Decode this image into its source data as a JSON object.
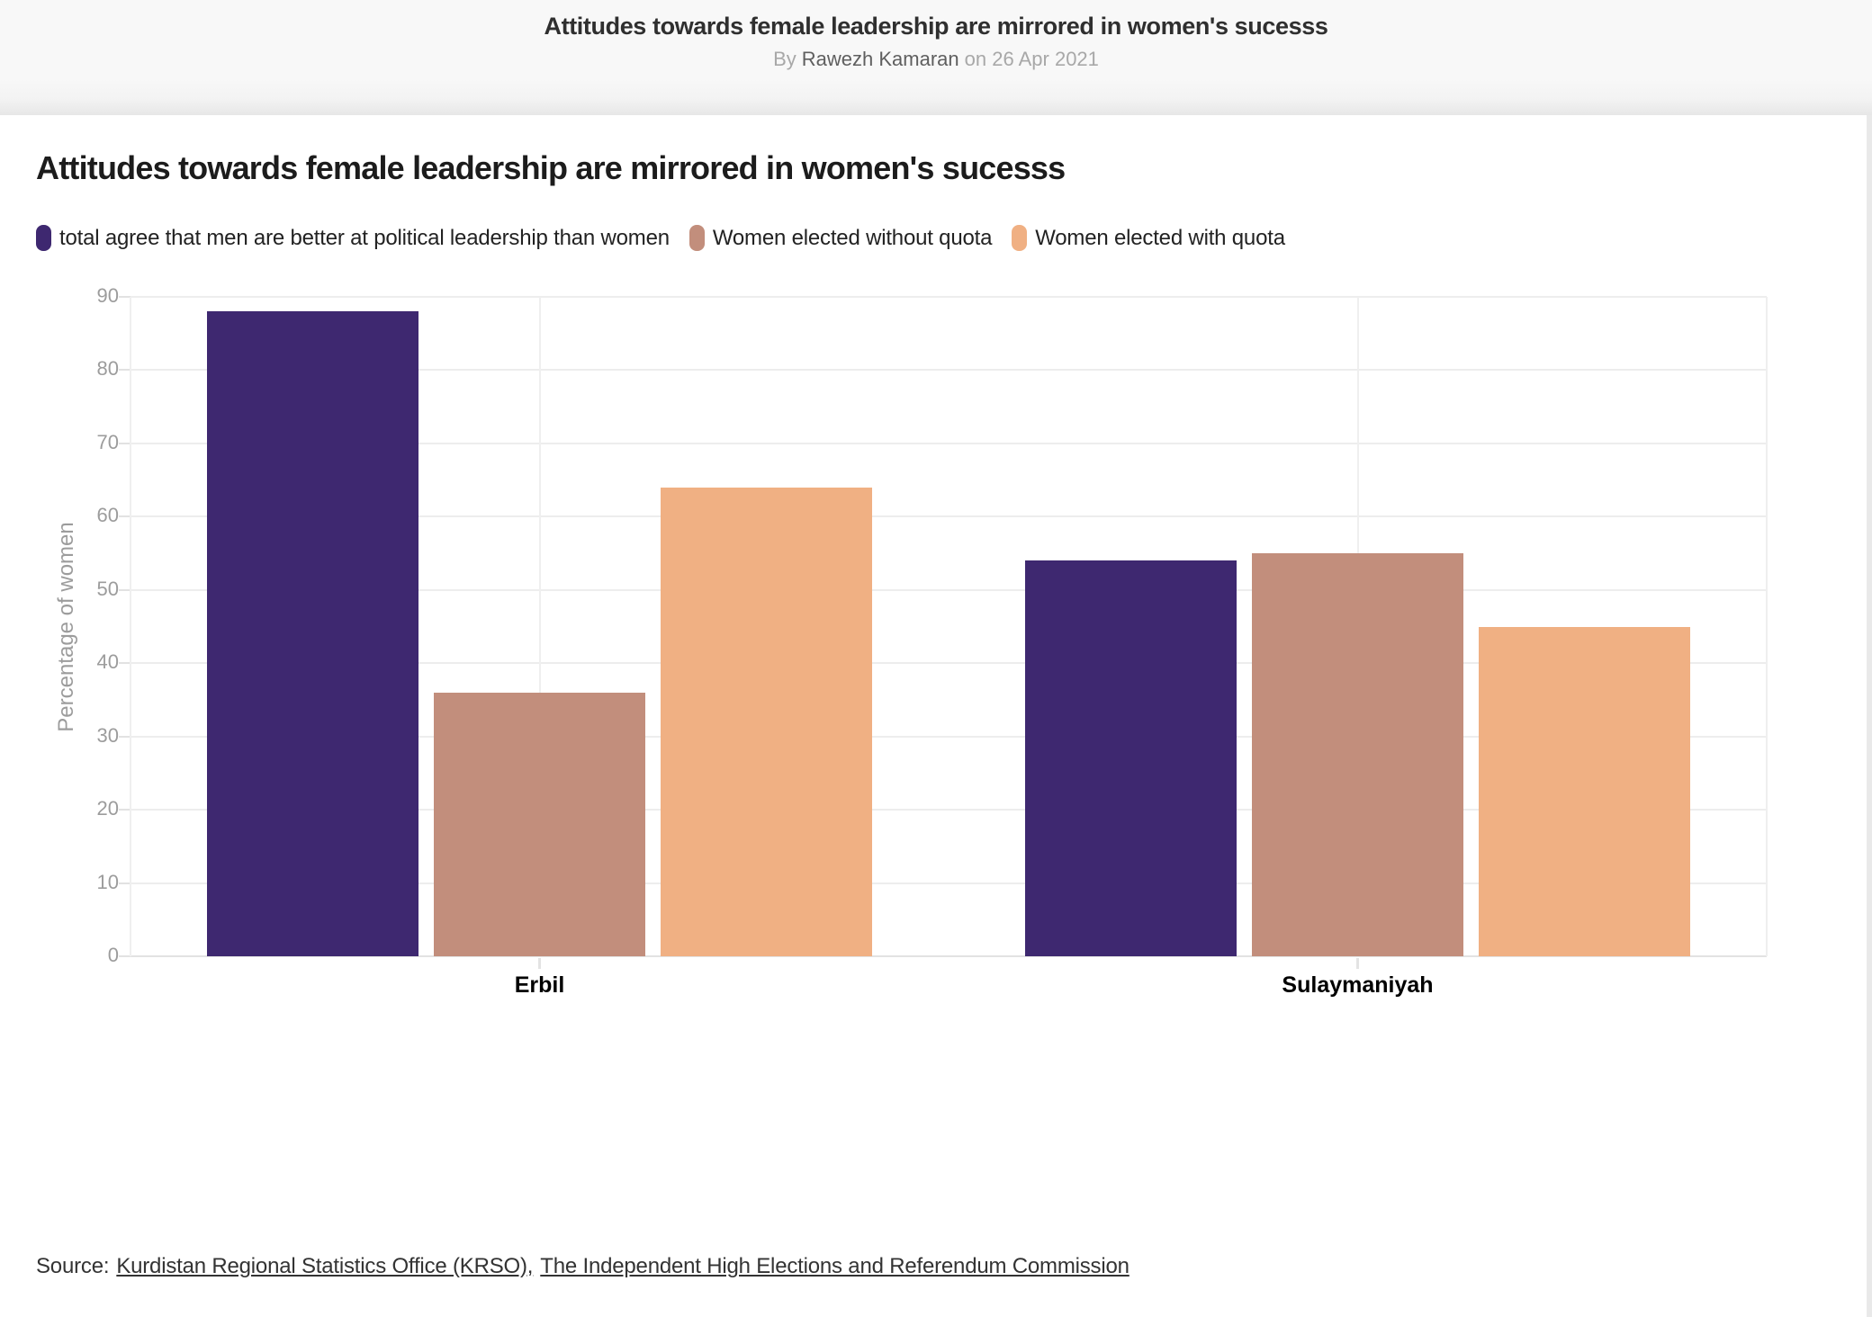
{
  "header": {
    "title": "Attitudes towards female leadership are mirrored in women's sucesss",
    "byline_prefix": "By",
    "author": "Rawezh Kamaran",
    "byline_suffix": "on 26 Apr 2021"
  },
  "chart_data": {
    "type": "bar",
    "title": "Attitudes towards female leadership are mirrored in women's sucesss",
    "categories": [
      "Erbil",
      "Sulaymaniyah"
    ],
    "series": [
      {
        "name": "total agree that men are better at political leadership than women",
        "color": "#3e2870",
        "values": [
          88,
          54
        ]
      },
      {
        "name": "Women elected without quota",
        "color": "#c28e7c",
        "values": [
          36,
          55
        ]
      },
      {
        "name": "Women elected with quota",
        "color": "#f0b083",
        "values": [
          64,
          45
        ]
      }
    ],
    "xlabel": "",
    "ylabel": "Percentage of women",
    "ylim": [
      0,
      90
    ],
    "ytick_step": 10,
    "yticks": [
      0,
      10,
      20,
      30,
      40,
      50,
      60,
      70,
      80,
      90
    ],
    "grid": true,
    "legend_position": "top",
    "baseline_color": "#e2e2e2",
    "gridline_color": "#ededed"
  },
  "source": {
    "prefix": "Source:",
    "links": [
      {
        "label": "Kurdistan Regional Statistics Office (KRSO),"
      },
      {
        "label": "The Independent High Elections and Referendum Commission"
      }
    ]
  }
}
